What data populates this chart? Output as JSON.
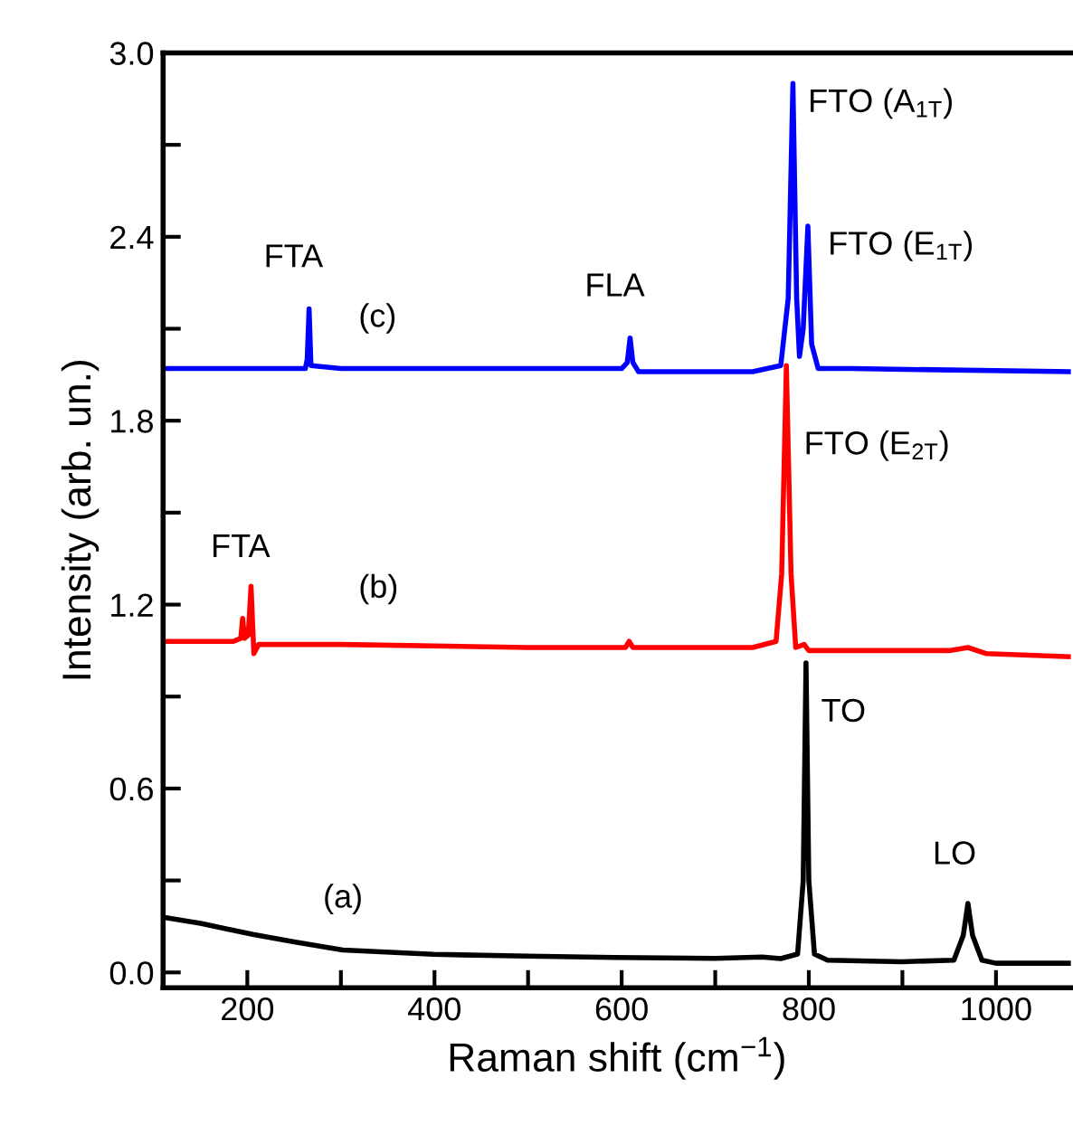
{
  "chart_data": {
    "type": "line",
    "xlabel": "Raman shift (cm$^{−1}$)",
    "ylabel": "Intensity (arb. un.)",
    "xlim": [
      110,
      1080
    ],
    "ylim": [
      -0.05,
      3.0
    ],
    "xticks": [
      200,
      {
        "value": 300,
        "label": null
      },
      400,
      {
        "value": 500,
        "label": null
      },
      600,
      {
        "value": 700,
        "label": null
      },
      800,
      {
        "value": 900,
        "label": null
      },
      1000
    ],
    "yticks": [
      {
        "value": 0.0,
        "label": "0.0"
      },
      {
        "value": 0.3,
        "label": null
      },
      {
        "value": 0.6,
        "label": "0.6"
      },
      {
        "value": 0.9,
        "label": null
      },
      {
        "value": 1.2,
        "label": "1.2"
      },
      {
        "value": 1.5,
        "label": null
      },
      {
        "value": 1.8,
        "label": "1.8"
      },
      {
        "value": 2.1,
        "label": null
      },
      {
        "value": 2.4,
        "label": "2.4"
      },
      {
        "value": 2.7,
        "label": null
      },
      {
        "value": 3.0,
        "label": "3.0"
      }
    ],
    "grid": false,
    "legend": false,
    "marker": "none",
    "line_style": "solid",
    "series": [
      {
        "color": "#000000",
        "x": [
          110,
          150,
          206,
          250,
          302,
          399,
          500,
          592,
          700,
          750,
          770,
          788,
          794,
          797,
          800,
          806,
          820,
          900,
          955,
          965,
          970,
          975,
          985,
          1000,
          1080
        ],
        "values": [
          0.18,
          0.16,
          0.124,
          0.1,
          0.073,
          0.059,
          0.053,
          0.049,
          0.046,
          0.05,
          0.045,
          0.06,
          0.3,
          1.01,
          0.3,
          0.06,
          0.04,
          0.035,
          0.04,
          0.12,
          0.225,
          0.12,
          0.04,
          0.03,
          0.03
        ]
      },
      {
        "color": "#ff0000",
        "x": [
          110,
          185,
          193,
          195,
          197,
          201,
          204,
          207,
          212,
          300,
          500,
          604,
          608,
          612,
          740,
          765,
          771,
          776,
          781,
          786,
          795,
          800,
          950,
          970,
          990,
          1080
        ],
        "values": [
          1.08,
          1.08,
          1.09,
          1.155,
          1.09,
          1.1,
          1.26,
          1.04,
          1.07,
          1.07,
          1.06,
          1.06,
          1.08,
          1.06,
          1.06,
          1.08,
          1.3,
          1.98,
          1.3,
          1.06,
          1.07,
          1.05,
          1.05,
          1.06,
          1.04,
          1.03
        ]
      },
      {
        "color": "#0000ff",
        "x": [
          110,
          262,
          264,
          266,
          268,
          300,
          600,
          606,
          609,
          612,
          618,
          740,
          770,
          778,
          783,
          787,
          790,
          794,
          799,
          803,
          810,
          845,
          1080
        ],
        "values": [
          1.97,
          1.97,
          2.0,
          2.165,
          1.98,
          1.97,
          1.97,
          1.99,
          2.07,
          1.99,
          1.96,
          1.96,
          1.98,
          2.2,
          2.9,
          2.2,
          2.01,
          2.1,
          2.435,
          2.05,
          1.97,
          1.97,
          1.96
        ]
      }
    ],
    "annotations": [
      {
        "text": "FTA",
        "x": 266,
        "y": 2.165
      },
      {
        "text": "(c)",
        "x": 300,
        "y": 1.97
      },
      {
        "text": "FLA",
        "x": 609,
        "y": 2.07
      },
      {
        "text": "FTO (A$_{1T}$)",
        "x": 783,
        "y": 2.9
      },
      {
        "text": "FTO (E$_{1T}$)",
        "x": 799,
        "y": 2.435
      },
      {
        "text": "FTO (E$_{2T}$)",
        "x": 776,
        "y": 1.98
      },
      {
        "text": "FTA",
        "x": 204,
        "y": 1.26
      },
      {
        "text": "(b)",
        "x": 300,
        "y": 1.07
      },
      {
        "text": "TO",
        "x": 797,
        "y": 1.01
      },
      {
        "text": "LO",
        "x": 970,
        "y": 0.225
      },
      {
        "text": "(a)",
        "x": 399,
        "y": 0.059
      }
    ]
  }
}
